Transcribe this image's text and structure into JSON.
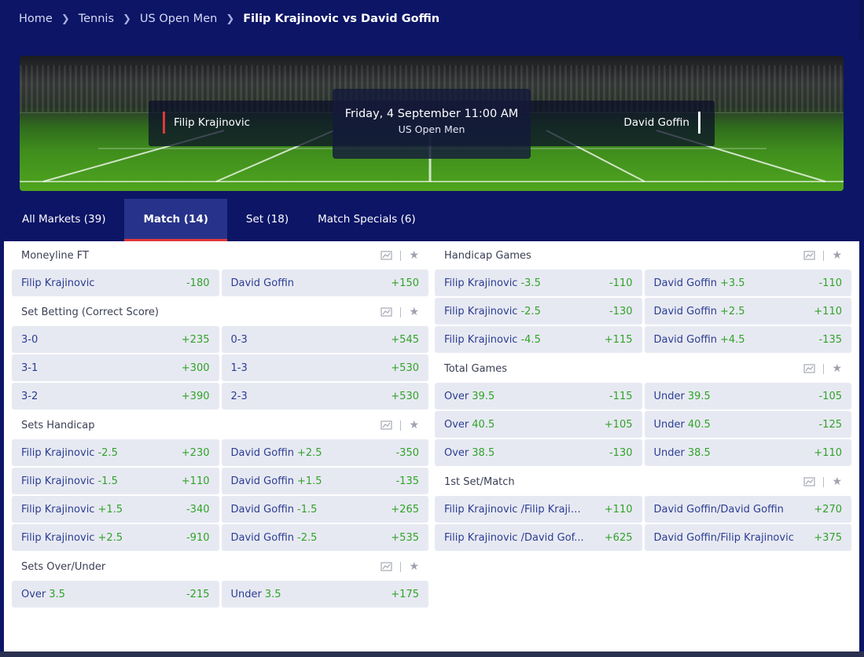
{
  "breadcrumb": [
    {
      "label": "Home"
    },
    {
      "label": "Tennis"
    },
    {
      "label": "US Open Men"
    },
    {
      "label": "Filip Krajinovic vs David Goffin"
    }
  ],
  "event": {
    "home": "Filip Krajinovic",
    "away": "David Goffin",
    "date": "Friday, 4 September 11:00 AM",
    "competition": "US Open Men"
  },
  "tabs": [
    {
      "label": "All Markets (39)"
    },
    {
      "label": "Match (14)"
    },
    {
      "label": "Set (18)"
    },
    {
      "label": "Match Specials (6)"
    }
  ],
  "markets_left": [
    {
      "title": "Moneyline FT",
      "rows": [
        [
          {
            "label": "Filip Krajinovic",
            "hc": "",
            "odds": "-180"
          },
          {
            "label": "David Goffin",
            "hc": "",
            "odds": "+150"
          }
        ]
      ]
    },
    {
      "title": "Set Betting (Correct Score)",
      "rows": [
        [
          {
            "label": "3-0",
            "hc": "",
            "odds": "+235"
          },
          {
            "label": "0-3",
            "hc": "",
            "odds": "+545"
          }
        ],
        [
          {
            "label": "3-1",
            "hc": "",
            "odds": "+300"
          },
          {
            "label": "1-3",
            "hc": "",
            "odds": "+530"
          }
        ],
        [
          {
            "label": "3-2",
            "hc": "",
            "odds": "+390"
          },
          {
            "label": "2-3",
            "hc": "",
            "odds": "+530"
          }
        ]
      ]
    },
    {
      "title": "Sets Handicap",
      "rows": [
        [
          {
            "label": "Filip Krajinovic",
            "hc": "-2.5",
            "odds": "+230"
          },
          {
            "label": "David Goffin",
            "hc": "+2.5",
            "odds": "-350"
          }
        ],
        [
          {
            "label": "Filip Krajinovic",
            "hc": "-1.5",
            "odds": "+110"
          },
          {
            "label": "David Goffin",
            "hc": "+1.5",
            "odds": "-135"
          }
        ],
        [
          {
            "label": "Filip Krajinovic",
            "hc": "+1.5",
            "odds": "-340"
          },
          {
            "label": "David Goffin",
            "hc": "-1.5",
            "odds": "+265"
          }
        ],
        [
          {
            "label": "Filip Krajinovic",
            "hc": "+2.5",
            "odds": "-910"
          },
          {
            "label": "David Goffin",
            "hc": "-2.5",
            "odds": "+535"
          }
        ]
      ]
    },
    {
      "title": "Sets Over/Under",
      "rows": [
        [
          {
            "label": "Over",
            "hc": "3.5",
            "odds": "-215"
          },
          {
            "label": "Under",
            "hc": "3.5",
            "odds": "+175"
          }
        ]
      ]
    }
  ],
  "markets_right": [
    {
      "title": "Handicap Games",
      "rows": [
        [
          {
            "label": "Filip Krajinovic",
            "hc": "-3.5",
            "odds": "-110"
          },
          {
            "label": "David Goffin",
            "hc": "+3.5",
            "odds": "-110"
          }
        ],
        [
          {
            "label": "Filip Krajinovic",
            "hc": "-2.5",
            "odds": "-130"
          },
          {
            "label": "David Goffin",
            "hc": "+2.5",
            "odds": "+110"
          }
        ],
        [
          {
            "label": "Filip Krajinovic",
            "hc": "-4.5",
            "odds": "+115"
          },
          {
            "label": "David Goffin",
            "hc": "+4.5",
            "odds": "-135"
          }
        ]
      ]
    },
    {
      "title": "Total Games",
      "rows": [
        [
          {
            "label": "Over",
            "hc": "39.5",
            "odds": "-115"
          },
          {
            "label": "Under",
            "hc": "39.5",
            "odds": "-105"
          }
        ],
        [
          {
            "label": "Over",
            "hc": "40.5",
            "odds": "+105"
          },
          {
            "label": "Under",
            "hc": "40.5",
            "odds": "-125"
          }
        ],
        [
          {
            "label": "Over",
            "hc": "38.5",
            "odds": "-130"
          },
          {
            "label": "Under",
            "hc": "38.5",
            "odds": "+110"
          }
        ]
      ]
    },
    {
      "title": "1st Set/Match",
      "rows": [
        [
          {
            "label": "Filip Krajinovic /Filip Krajin...",
            "hc": "",
            "odds": "+110"
          },
          {
            "label": "David Goffin/David Goffin",
            "hc": "",
            "odds": "+270"
          }
        ],
        [
          {
            "label": "Filip Krajinovic /David Gof...",
            "hc": "",
            "odds": "+625"
          },
          {
            "label": "David Goffin/Filip Krajinovic",
            "hc": "",
            "odds": "+375"
          }
        ]
      ]
    }
  ],
  "icons": {
    "stats": "stats-icon",
    "favorite": "star-icon",
    "separator": "chevron-right-icon"
  },
  "colors": {
    "background": "#0c1566",
    "odds": "#31a32a",
    "label": "#2b3d92",
    "cell": "#e7e9f2",
    "accent": "#e0383b"
  }
}
